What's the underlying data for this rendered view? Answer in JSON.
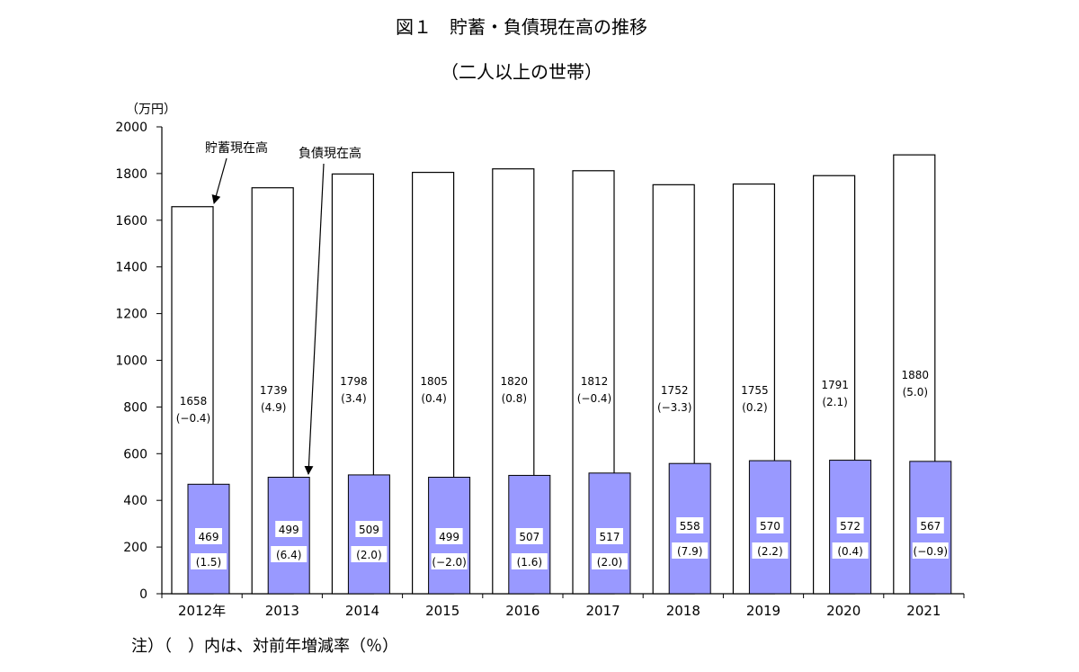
{
  "title": "図１　貯蓄・負債現在高の推移",
  "subtitle": "（二人以上の世帯）",
  "note": "注）（　）内は、対前年増減率（％）",
  "chart_data": {
    "type": "bar",
    "ylabel": "（万円）",
    "ylim": [
      0,
      2000
    ],
    "yticks": [
      0,
      200,
      400,
      600,
      800,
      1000,
      1200,
      1400,
      1600,
      1800,
      2000
    ],
    "categories": [
      "2012年",
      "2013",
      "2014",
      "2015",
      "2016",
      "2017",
      "2018",
      "2019",
      "2020",
      "2021"
    ],
    "series": [
      {
        "name": "貯蓄現在高",
        "values": [
          1658,
          1739,
          1798,
          1805,
          1820,
          1812,
          1752,
          1755,
          1791,
          1880
        ],
        "change_labels": [
          "(−0.4)",
          "(4.9)",
          "(3.4)",
          "(0.4)",
          "(0.8)",
          "(−0.4)",
          "(−3.3)",
          "(0.2)",
          "(2.1)",
          "(5.0)"
        ],
        "color": "#ffffff"
      },
      {
        "name": "負債現在高",
        "values": [
          469,
          499,
          509,
          499,
          507,
          517,
          558,
          570,
          572,
          567
        ],
        "change_labels": [
          "(1.5)",
          "(6.4)",
          "(2.0)",
          "(−2.0)",
          "(1.6)",
          "(2.0)",
          "(7.9)",
          "(2.2)",
          "(0.4)",
          "(−0.9)"
        ],
        "color": "#9999ff"
      }
    ],
    "annotations": [
      "貯蓄現在高",
      "負債現在高"
    ]
  }
}
